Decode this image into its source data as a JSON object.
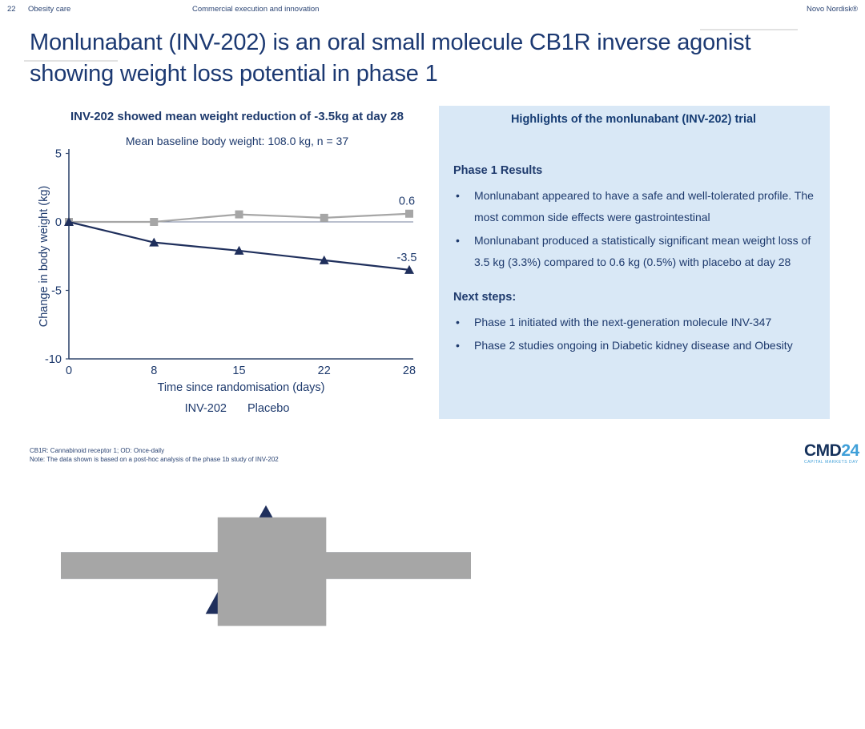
{
  "header": {
    "page_number": "22",
    "section": "Obesity care",
    "center": "Commercial execution and innovation",
    "right": "Novo Nordisk®"
  },
  "title": "Monlunabant (INV-202) is an oral small molecule CB1R inverse agonist showing weight loss potential in phase 1",
  "chart_data": {
    "type": "line",
    "title": "INV-202 showed mean weight reduction of -3.5kg at day 28",
    "subtitle": "Mean baseline body weight: 108.0 kg, n = 37",
    "xlabel": "Time since randomisation (days)",
    "ylabel": "Change in body weight (kg)",
    "x": [
      0,
      8,
      15,
      22,
      28
    ],
    "ylim": [
      -10,
      5
    ],
    "yticks": [
      5,
      0,
      -5,
      -10
    ],
    "grid": false,
    "legend_position": "bottom",
    "series": [
      {
        "name": "INV-202",
        "color": "#1f2f5c",
        "marker": "triangle",
        "values": [
          0,
          -1.5,
          -2.1,
          -2.8,
          -3.5
        ],
        "end_label": "-3.5"
      },
      {
        "name": "Placebo",
        "color": "#a6a6a6",
        "marker": "square",
        "values": [
          0,
          0,
          0.55,
          0.3,
          0.6
        ],
        "end_label": "0.6"
      }
    ]
  },
  "panel": {
    "title": "Highlights of the monlunabant (INV-202) trial",
    "background": "#d9e8f6",
    "sections": [
      {
        "heading": "Phase 1 Results",
        "bullets": [
          "Monlunabant appeared to have a safe and well-tolerated profile. The most common side effects were gastrointestinal",
          "Monlunabant produced a statistically significant mean weight loss of 3.5 kg (3.3%) compared to 0.6 kg (0.5%) with placebo at day 28"
        ]
      },
      {
        "heading": "Next steps:",
        "bullets": [
          "Phase 1 initiated with the next-generation molecule INV-347",
          "Phase 2 studies ongoing in Diabetic kidney disease and Obesity"
        ]
      }
    ]
  },
  "footer": {
    "notes": [
      "CB1R: Cannabinoid receptor 1; OD: Once-daily",
      "Note: The data shown is based on a post-hoc analysis of the phase 1b study of INV-202"
    ],
    "logo": {
      "cmd": "CMD",
      "year": "24",
      "caption": "CAPITAL MARKETS DAY"
    }
  },
  "colors": {
    "navy": "#1e3a6d",
    "chart_navy": "#1f2f5c",
    "gray": "#a6a6a6",
    "panel_bg": "#d9e8f6",
    "accent": "#3f9fd8",
    "zero_line": "#46587e"
  }
}
